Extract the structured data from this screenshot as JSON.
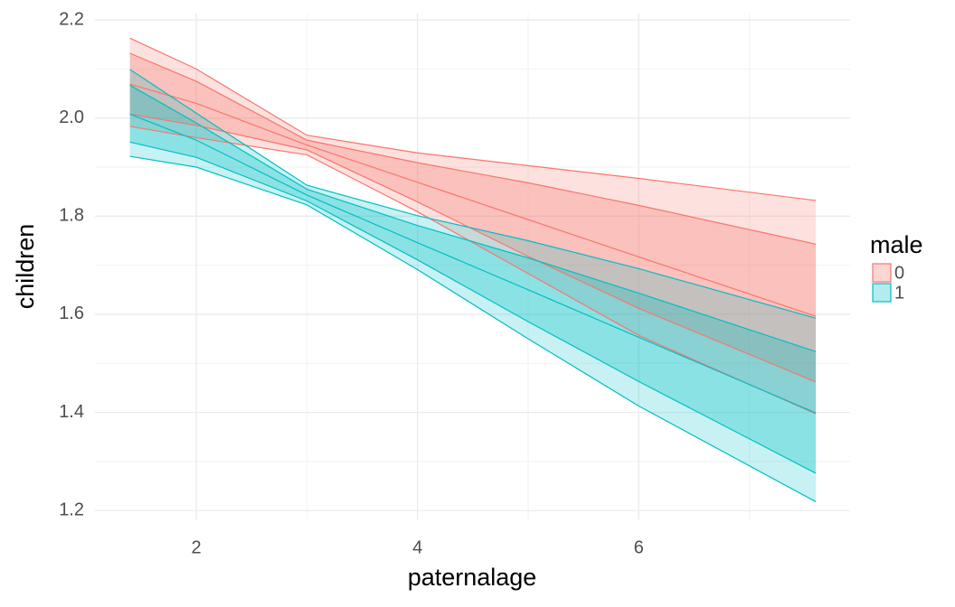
{
  "chart_data": {
    "type": "ribbon",
    "x_label": "paternalage",
    "y_label": "children",
    "legend_title": "male",
    "legend_position": "right",
    "grid": true,
    "xlim": [
      1.084,
      7.91
    ],
    "xticks": [
      2,
      4,
      6
    ],
    "x_minor_gridlines": [
      3,
      5,
      7
    ],
    "ylim": [
      1.182,
      2.213
    ],
    "yticks": [
      1.2,
      1.4,
      1.6,
      1.8,
      {
        "value": 2,
        "label": "2.0"
      },
      2.2
    ],
    "y_minor_gridlines": [
      1.3,
      1.5,
      1.7,
      1.9,
      2.1
    ],
    "x": [
      1.4,
      2,
      3,
      4,
      5,
      6,
      7.6
    ],
    "series": [
      {
        "name": "0",
        "color": "#F8766D",
        "fit": [
          2.069,
          2.03,
          1.945,
          1.869,
          1.793,
          1.717,
          1.596
        ],
        "upper_inner": [
          2.132,
          2.075,
          1.955,
          1.909,
          1.868,
          1.822,
          1.743
        ],
        "lower_inner": [
          2.008,
          1.985,
          1.935,
          1.829,
          1.718,
          1.612,
          1.462
        ],
        "upper_outer": [
          2.163,
          2.1,
          1.965,
          1.929,
          1.903,
          1.877,
          1.832
        ],
        "lower_outer": [
          1.983,
          1.96,
          1.925,
          1.809,
          1.683,
          1.557,
          1.397
        ]
      },
      {
        "name": "1",
        "color": "#00BFC4",
        "fit": [
          2.008,
          1.955,
          1.843,
          1.746,
          1.65,
          1.553,
          1.399
        ],
        "upper_inner": [
          2.067,
          1.99,
          1.855,
          1.781,
          1.715,
          1.643,
          1.524
        ],
        "lower_inner": [
          1.951,
          1.92,
          1.831,
          1.711,
          1.585,
          1.463,
          1.276
        ],
        "upper_outer": [
          2.099,
          2.01,
          1.863,
          1.801,
          1.75,
          1.693,
          1.592
        ],
        "lower_outer": [
          1.922,
          1.9,
          1.823,
          1.691,
          1.55,
          1.413,
          1.218
        ]
      }
    ]
  }
}
